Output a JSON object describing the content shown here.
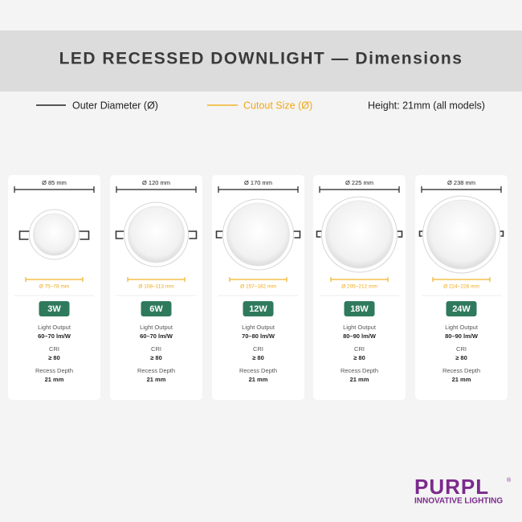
{
  "header": {
    "title": "LED RECESSED DOWNLIGHT — Dimensions"
  },
  "legend": {
    "outer": "Outer Diameter (Ø)",
    "cutout": "Cutout Size (Ø)",
    "height": "Height: 21mm (all models)"
  },
  "products": [
    {
      "outer": "Ø 85 mm",
      "cutout": "Ø 75–78 mm",
      "power": "3W",
      "light_output_label": "Light Output",
      "light_output": "60–70 lm/W",
      "cri_label": "CRI",
      "cri": "≥ 80",
      "recess_label": "Recess Depth",
      "recess": "21 mm"
    },
    {
      "outer": "Ø 120 mm",
      "cutout": "Ø 108–113 mm",
      "power": "6W",
      "light_output_label": "Light Output",
      "light_output": "60–70 lm/W",
      "cri_label": "CRI",
      "cri": "≥ 80",
      "recess_label": "Recess Depth",
      "recess": "21 mm"
    },
    {
      "outer": "Ø 170 mm",
      "cutout": "Ø 157–162 mm",
      "power": "12W",
      "light_output_label": "Light Output",
      "light_output": "70–80 lm/W",
      "cri_label": "CRI",
      "cri": "≥ 80",
      "recess_label": "Recess Depth",
      "recess": "21 mm"
    },
    {
      "outer": "Ø 225 mm",
      "cutout": "Ø 205–212 mm",
      "power": "18W",
      "light_output_label": "Light Output",
      "light_output": "80–90 lm/W",
      "cri_label": "CRI",
      "cri": "≥ 80",
      "recess_label": "Recess Depth",
      "recess": "21 mm"
    },
    {
      "outer": "Ø 238 mm",
      "cutout": "Ø 224–228 mm",
      "power": "24W",
      "light_output_label": "Light Output",
      "light_output": "80–90 lm/W",
      "cri_label": "CRI",
      "cri": "≥ 80",
      "recess_label": "Recess Depth",
      "recess": "21 mm"
    }
  ],
  "logo": {
    "brand": "PURPL",
    "mark": "®",
    "tagline": "INNOVATIVE LIGHTING"
  }
}
